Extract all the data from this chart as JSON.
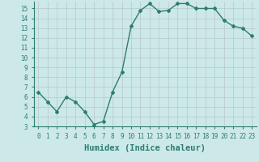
{
  "x": [
    0,
    1,
    2,
    3,
    4,
    5,
    6,
    7,
    8,
    9,
    10,
    11,
    12,
    13,
    14,
    15,
    16,
    17,
    18,
    19,
    20,
    21,
    22,
    23
  ],
  "y": [
    6.5,
    5.5,
    4.5,
    6.0,
    5.5,
    4.5,
    3.2,
    3.5,
    6.5,
    8.5,
    13.2,
    14.8,
    15.5,
    14.7,
    14.8,
    15.5,
    15.5,
    15.0,
    15.0,
    15.0,
    13.8,
    13.2,
    13.0,
    12.2
  ],
  "line_color": "#2e7d6e",
  "marker": "D",
  "marker_size": 2.0,
  "bg_color": "#cce8e8",
  "grid_color": "#b8c8c8",
  "xlabel": "Humidex (Indice chaleur)",
  "ylabel": "",
  "ylim": [
    3,
    15.7
  ],
  "xlim": [
    -0.5,
    23.5
  ],
  "yticks": [
    3,
    4,
    5,
    6,
    7,
    8,
    9,
    10,
    11,
    12,
    13,
    14,
    15
  ],
  "xticks": [
    0,
    1,
    2,
    3,
    4,
    5,
    6,
    7,
    8,
    9,
    10,
    11,
    12,
    13,
    14,
    15,
    16,
    17,
    18,
    19,
    20,
    21,
    22,
    23
  ],
  "tick_label_fontsize": 5.5,
  "xlabel_fontsize": 7.5,
  "line_width": 1.0
}
